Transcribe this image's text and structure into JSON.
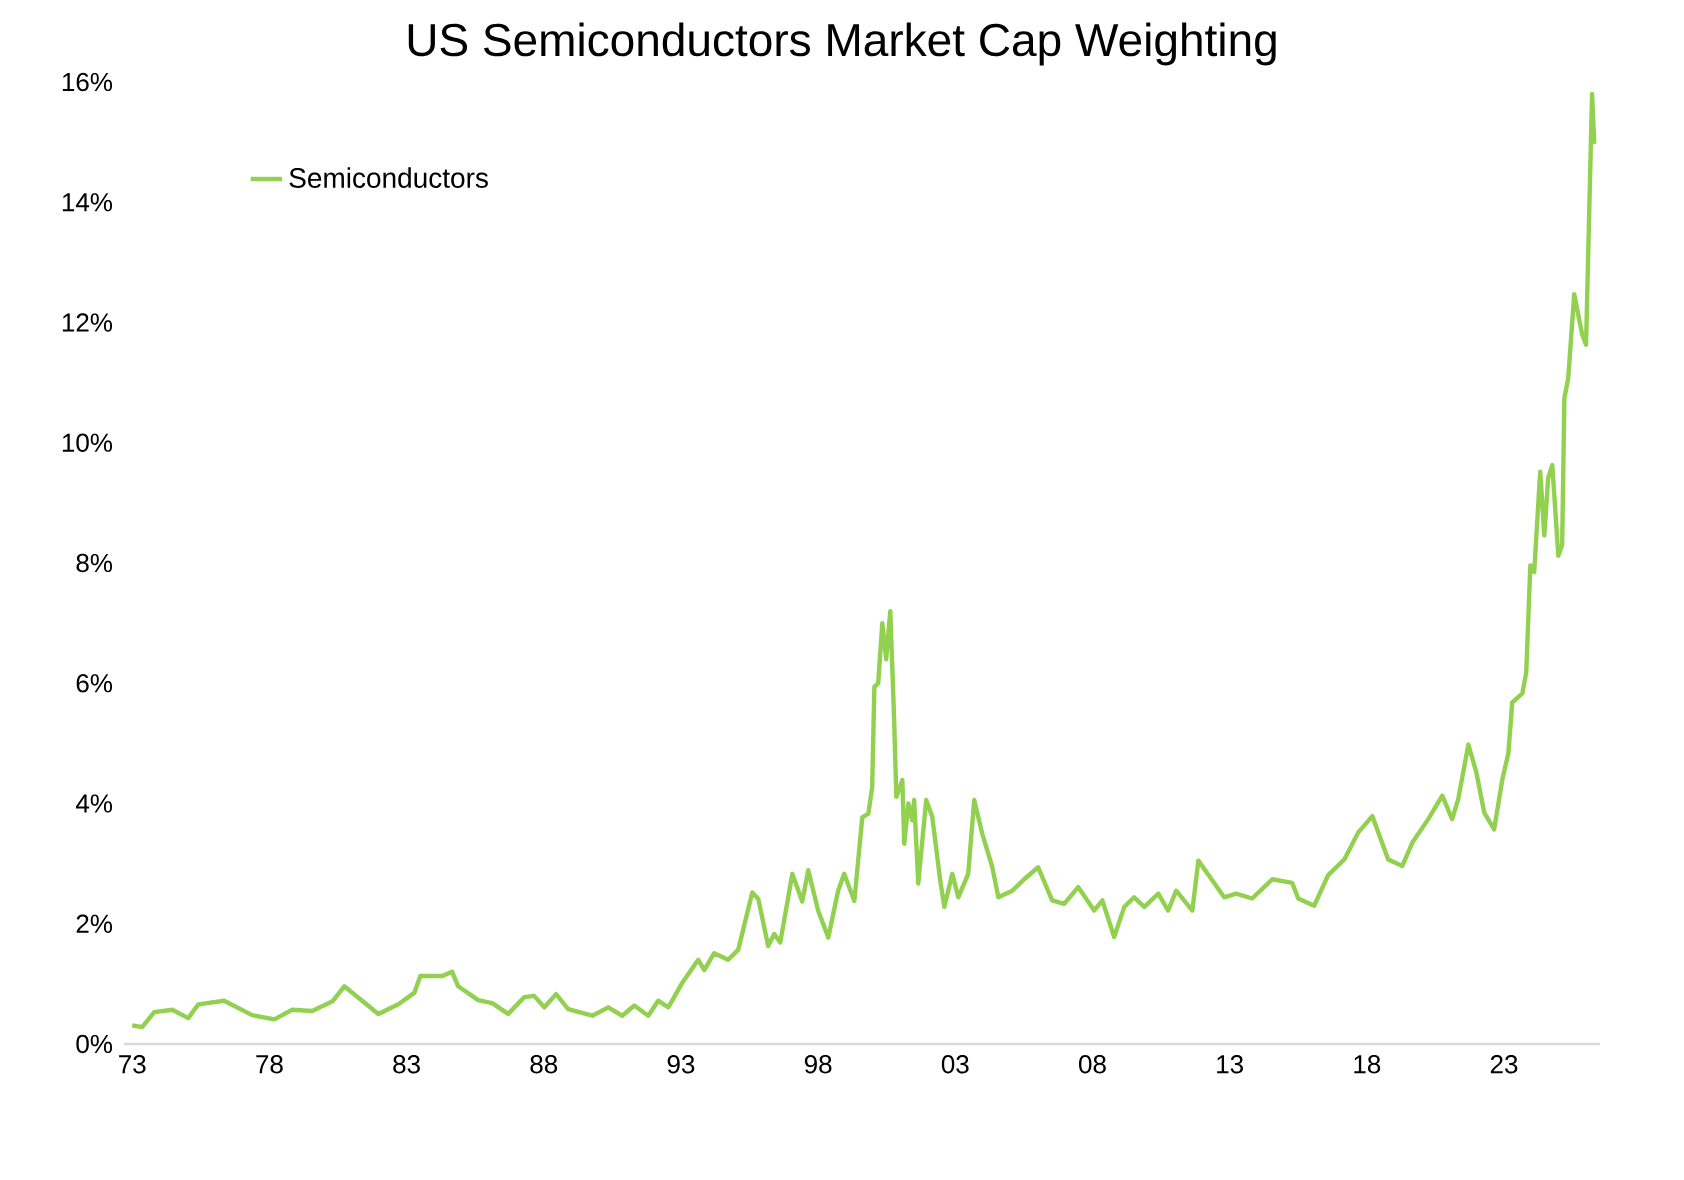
{
  "chart_data": {
    "type": "line",
    "title": "US Semiconductors Market Cap Weighting",
    "legend": "top left",
    "grid": false,
    "marker": "none",
    "line_style": "solid",
    "xlim": [
      1972.7,
      2026.5
    ],
    "ylim": [
      0,
      16
    ],
    "xticks": [
      {
        "value": 1973,
        "label": "73"
      },
      {
        "value": 1978,
        "label": "78"
      },
      {
        "value": 1983,
        "label": "83"
      },
      {
        "value": 1988,
        "label": "88"
      },
      {
        "value": 1993,
        "label": "93"
      },
      {
        "value": 1998,
        "label": "98"
      },
      {
        "value": 2003,
        "label": "03"
      },
      {
        "value": 2008,
        "label": "08"
      },
      {
        "value": 2013,
        "label": "13"
      },
      {
        "value": 2018,
        "label": "18"
      },
      {
        "value": 2023,
        "label": "23"
      }
    ],
    "yticks": [
      {
        "value": 0,
        "label": "0%"
      },
      {
        "value": 2,
        "label": "2%"
      },
      {
        "value": 4,
        "label": "4%"
      },
      {
        "value": 6,
        "label": "6%"
      },
      {
        "value": 8,
        "label": "8%"
      },
      {
        "value": 10,
        "label": "10%"
      },
      {
        "value": 12,
        "label": "12%"
      },
      {
        "value": 14,
        "label": "14%"
      },
      {
        "value": 16,
        "label": "16%"
      }
    ],
    "series": [
      {
        "name": "Semiconductors",
        "color": "#92d050",
        "x": [
          1973.0,
          1973.36,
          1973.8,
          1974.46,
          1975.04,
          1975.41,
          1976.35,
          1977.37,
          1978.18,
          1978.83,
          1979.56,
          1980.3,
          1980.73,
          1981.38,
          1981.97,
          1982.7,
          1983.28,
          1983.5,
          1984.3,
          1984.66,
          1984.88,
          1985.61,
          1986.12,
          1986.7,
          1987.29,
          1987.65,
          1988.02,
          1988.45,
          1988.89,
          1989.77,
          1990.35,
          1990.86,
          1991.3,
          1991.81,
          1992.17,
          1992.54,
          1993.05,
          1993.63,
          1993.85,
          1994.21,
          1994.72,
          1995.09,
          1995.6,
          1995.82,
          1996.18,
          1996.4,
          1996.62,
          1997.06,
          1997.42,
          1997.64,
          1998.0,
          1998.37,
          1998.73,
          1998.95,
          1999.32,
          1999.61,
          1999.83,
          1999.97,
          2000.05,
          2000.19,
          2000.34,
          2000.48,
          2000.63,
          2000.77,
          2000.85,
          2001.07,
          2001.14,
          2001.29,
          2001.43,
          2001.5,
          2001.65,
          2001.94,
          2002.16,
          2002.45,
          2002.6,
          2002.89,
          2003.11,
          2003.47,
          2003.69,
          2003.98,
          2004.35,
          2004.57,
          2005.08,
          2005.51,
          2006.02,
          2006.53,
          2006.97,
          2007.48,
          2008.06,
          2008.36,
          2008.79,
          2009.16,
          2009.52,
          2009.89,
          2010.4,
          2010.76,
          2011.05,
          2011.64,
          2011.86,
          2012.37,
          2012.8,
          2013.24,
          2013.82,
          2014.55,
          2015.28,
          2015.5,
          2016.08,
          2016.59,
          2017.18,
          2017.69,
          2018.2,
          2018.78,
          2019.29,
          2019.66,
          2020.24,
          2020.75,
          2021.11,
          2021.33,
          2021.7,
          2021.99,
          2022.28,
          2022.64,
          2022.94,
          2023.16,
          2023.3,
          2023.67,
          2023.81,
          2023.96,
          2024.1,
          2024.32,
          2024.47,
          2024.61,
          2024.76,
          2024.98,
          2025.12,
          2025.2,
          2025.34,
          2025.56,
          2025.85,
          2025.99,
          2026.21,
          2026.29
        ],
        "values": [
          0.31,
          0.28,
          0.53,
          0.57,
          0.43,
          0.66,
          0.72,
          0.48,
          0.41,
          0.57,
          0.55,
          0.71,
          0.96,
          0.72,
          0.5,
          0.66,
          0.85,
          1.13,
          1.13,
          1.2,
          0.96,
          0.73,
          0.68,
          0.5,
          0.78,
          0.8,
          0.61,
          0.83,
          0.58,
          0.47,
          0.61,
          0.47,
          0.64,
          0.47,
          0.72,
          0.61,
          1.02,
          1.4,
          1.23,
          1.51,
          1.4,
          1.57,
          2.52,
          2.41,
          1.63,
          1.83,
          1.69,
          2.83,
          2.37,
          2.89,
          2.22,
          1.77,
          2.55,
          2.83,
          2.38,
          3.77,
          3.83,
          4.27,
          5.94,
          6.0,
          7.0,
          6.4,
          7.2,
          5.4,
          4.11,
          4.39,
          3.33,
          4.0,
          3.72,
          4.06,
          2.67,
          4.06,
          3.78,
          2.72,
          2.28,
          2.83,
          2.44,
          2.83,
          4.06,
          3.5,
          2.94,
          2.44,
          2.55,
          2.74,
          2.94,
          2.39,
          2.33,
          2.61,
          2.22,
          2.39,
          1.78,
          2.28,
          2.44,
          2.28,
          2.5,
          2.22,
          2.55,
          2.22,
          3.05,
          2.72,
          2.44,
          2.5,
          2.42,
          2.74,
          2.68,
          2.42,
          2.3,
          2.81,
          3.07,
          3.52,
          3.79,
          3.07,
          2.96,
          3.35,
          3.74,
          4.13,
          3.74,
          4.07,
          4.98,
          4.52,
          3.85,
          3.57,
          4.4,
          4.84,
          5.68,
          5.83,
          6.18,
          7.96,
          7.85,
          9.52,
          8.46,
          9.41,
          9.63,
          8.12,
          8.3,
          10.74,
          11.07,
          12.47,
          11.8,
          11.63,
          15.8,
          14.97
        ]
      }
    ]
  }
}
